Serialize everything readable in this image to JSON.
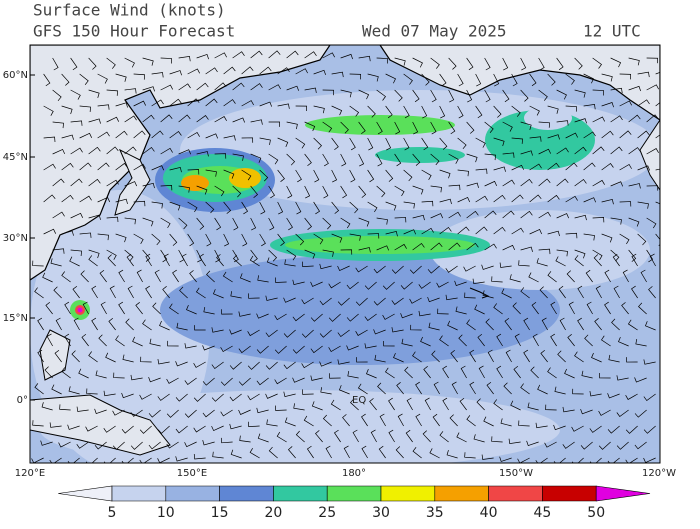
{
  "header": {
    "title": "Surface Wind (knots)",
    "subtitle": "GFS 150 Hour Forecast",
    "date": "Wed 07 May 2025",
    "time": "12 UTC"
  },
  "map": {
    "lat_labels": [
      "60°N",
      "45°N",
      "30°N",
      "15°N",
      "0°"
    ],
    "lon_labels": [
      "120°E",
      "150°E",
      "180°",
      "150°W",
      "120°W"
    ],
    "annotations": [
      "EQ"
    ],
    "colorbar": {
      "ticks": [
        5,
        10,
        15,
        20,
        25,
        30,
        35,
        40,
        45,
        50
      ],
      "colors": [
        "#eef0f8",
        "#c6d3ee",
        "#98b2e2",
        "#5f86d4",
        "#32c8a0",
        "#5ae05a",
        "#f0f000",
        "#f5a000",
        "#f04646",
        "#c80000",
        "#e000e0"
      ]
    }
  }
}
